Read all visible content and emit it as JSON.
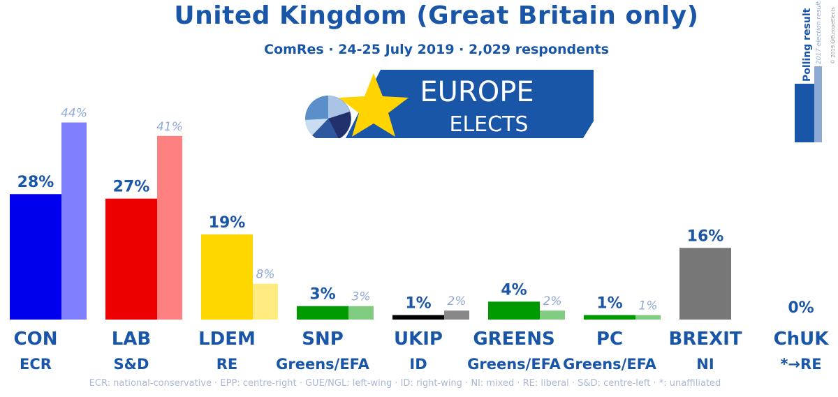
{
  "header": {
    "title": "United Kingdom (Great Britain only)",
    "subtitle": "ComRes · 24-25 July 2019 · 2,029 respondents"
  },
  "logo": {
    "line1": "EUROPE",
    "line2": "ELECTS"
  },
  "key": {
    "polling_label": "Polling result",
    "election_label": "2017 election result",
    "copyright": "© 2019 @EuropeElects"
  },
  "footnote": "ECR: national-conservative · EPP: centre-right · GUE/NGL: left-wing · ID: right-wing · NI: mixed · RE: liberal · S&D: centre-left · *: unaffiliated",
  "chart_data": {
    "type": "bar",
    "categories": [
      "CON",
      "LAB",
      "LDEM",
      "SNP",
      "UKIP",
      "GREENS",
      "PC",
      "BREXIT",
      "ChUK"
    ],
    "groups": [
      "ECR",
      "S&D",
      "RE",
      "Greens/EFA",
      "ID",
      "Greens/EFA",
      "Greens/EFA",
      "NI",
      "*→RE"
    ],
    "series": [
      {
        "name": "Polling result",
        "values": [
          28,
          27,
          19,
          3,
          1,
          4,
          1,
          16,
          0
        ]
      },
      {
        "name": "2017 election result",
        "values": [
          44,
          41,
          8,
          3,
          2,
          2,
          1,
          null,
          null
        ]
      }
    ],
    "poll_labels": [
      "28%",
      "27%",
      "19%",
      "3%",
      "1%",
      "4%",
      "1%",
      "16%",
      "0%"
    ],
    "election_labels": [
      "44%",
      "41%",
      "8%",
      "3%",
      "2%",
      "2%",
      "1%",
      "",
      ""
    ],
    "poll_colors": [
      "#0000ee",
      "#ee0000",
      "#ffd700",
      "#009a00",
      "#000000",
      "#009a00",
      "#009a00",
      "#777777",
      "#777777"
    ],
    "election_colors": [
      "#8080ff",
      "#ff8080",
      "#ffeb7f",
      "#80cc80",
      "#888888",
      "#80cc80",
      "#80cc80",
      "#bbbbbb",
      "#bbbbbb"
    ],
    "ylim": [
      0,
      45
    ],
    "legend_position": "top-right"
  }
}
